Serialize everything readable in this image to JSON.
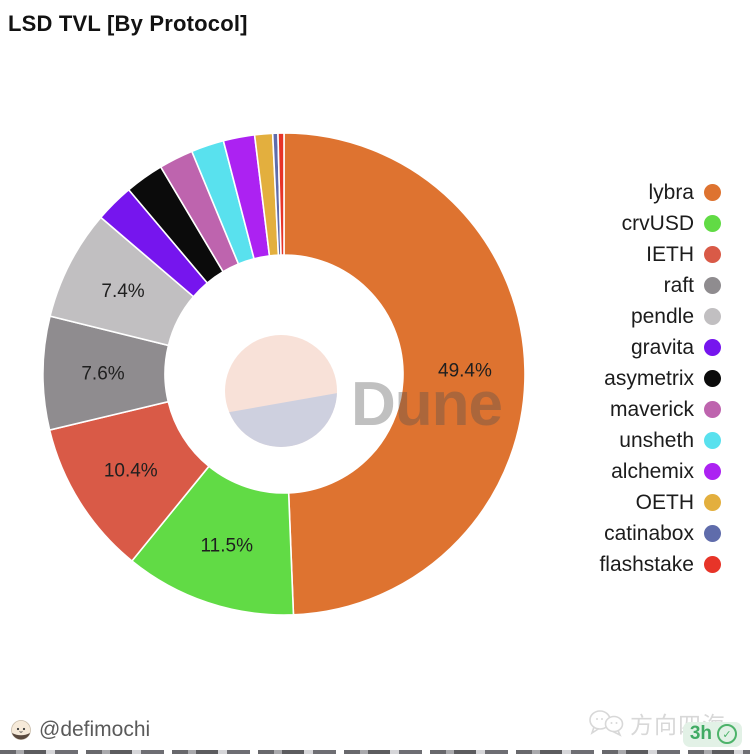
{
  "title": "LSD TVL [By Protocol]",
  "watermark": {
    "brand": "Dune"
  },
  "chart_data": {
    "type": "pie",
    "donut": true,
    "title": "LSD TVL [By Protocol]",
    "unit": "%",
    "legend_position": "right",
    "label_threshold_pct": 7,
    "labels_shown": [
      "49.4%",
      "11.5%",
      "10.4%",
      "7.6%",
      "7.4%"
    ],
    "series": [
      {
        "name": "lybra",
        "value": 49.4,
        "color": "#DE7330"
      },
      {
        "name": "crvUSD",
        "value": 11.5,
        "color": "#61DB45"
      },
      {
        "name": "IETH",
        "value": 10.4,
        "color": "#D95A47"
      },
      {
        "name": "raft",
        "value": 7.6,
        "color": "#8F8C8F"
      },
      {
        "name": "pendle",
        "value": 7.4,
        "color": "#C1BFC1"
      },
      {
        "name": "gravita",
        "value": 2.6,
        "color": "#7615EE"
      },
      {
        "name": "asymetrix",
        "value": 2.6,
        "color": "#0B0B0B"
      },
      {
        "name": "maverick",
        "value": 2.3,
        "color": "#BE64AE"
      },
      {
        "name": "unsheth",
        "value": 2.2,
        "color": "#59E1EE"
      },
      {
        "name": "alchemix",
        "value": 2.1,
        "color": "#AC22F2"
      },
      {
        "name": "OETH",
        "value": 1.2,
        "color": "#E3AF3E"
      },
      {
        "name": "catinabox",
        "value": 0.35,
        "color": "#5F6CAB"
      },
      {
        "name": "flashstake",
        "value": 0.4,
        "color": "#E73428"
      }
    ],
    "center_logo_colors": {
      "top": "#f8e1d8",
      "bottom": "#ced0df"
    }
  },
  "footer": {
    "author_handle": "@defimochi",
    "wechat_watermark": "方向四海",
    "time_badge": "3h",
    "time_badge_color": "#41ab64"
  }
}
